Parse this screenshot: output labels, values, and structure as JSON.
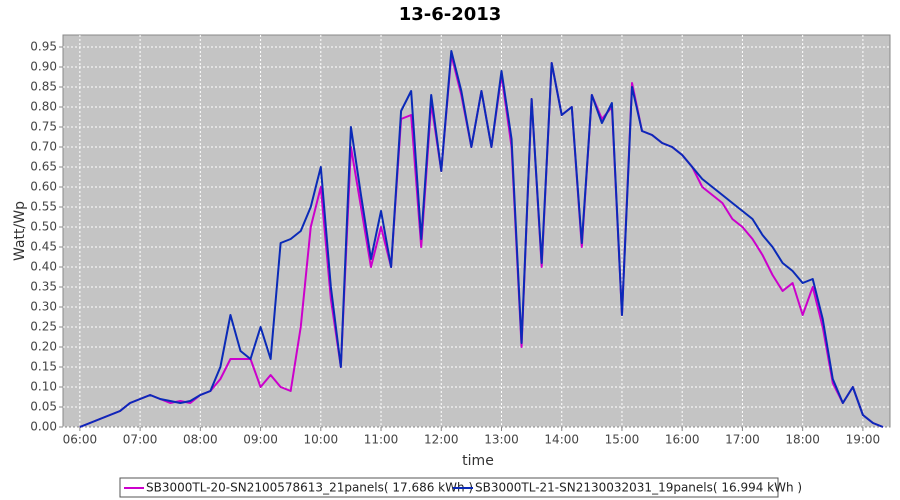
{
  "chart_data": {
    "type": "line",
    "title": "13-6-2013",
    "x_label": "time",
    "y_label": "Watt/Wp",
    "x": [
      6,
      6.167,
      6.333,
      6.5,
      6.667,
      6.833,
      7,
      7.167,
      7.333,
      7.5,
      7.667,
      7.833,
      8,
      8.167,
      8.333,
      8.5,
      8.667,
      8.833,
      9,
      9.167,
      9.333,
      9.5,
      9.667,
      9.833,
      10,
      10.167,
      10.333,
      10.5,
      10.667,
      10.833,
      11,
      11.167,
      11.333,
      11.5,
      11.667,
      11.833,
      12,
      12.167,
      12.333,
      12.5,
      12.667,
      12.833,
      13,
      13.167,
      13.333,
      13.5,
      13.667,
      13.833,
      14,
      14.167,
      14.333,
      14.5,
      14.667,
      14.833,
      15,
      15.167,
      15.333,
      15.5,
      15.667,
      15.833,
      16,
      16.167,
      16.333,
      16.5,
      16.667,
      16.833,
      17,
      17.167,
      17.333,
      17.5,
      17.667,
      17.833,
      18,
      18.167,
      18.333,
      18.5,
      18.667,
      18.833,
      19,
      19.167,
      19.333
    ],
    "series": [
      {
        "name": "SB3000TL-20-SN2100578613_21panels( 17.686 kWh )",
        "color": "#cc00cc",
        "values": [
          0,
          0.01,
          0.02,
          0.03,
          0.04,
          0.06,
          0.07,
          0.08,
          0.07,
          0.06,
          0.065,
          0.06,
          0.08,
          0.09,
          0.12,
          0.17,
          0.17,
          0.17,
          0.1,
          0.13,
          0.1,
          0.09,
          0.25,
          0.5,
          0.6,
          0.32,
          0.15,
          0.7,
          0.55,
          0.4,
          0.5,
          0.4,
          0.77,
          0.78,
          0.45,
          0.81,
          0.64,
          0.93,
          0.83,
          0.7,
          0.84,
          0.7,
          0.88,
          0.7,
          0.2,
          0.82,
          0.4,
          0.91,
          0.78,
          0.8,
          0.45,
          0.83,
          0.77,
          0.8,
          0.28,
          0.86,
          0.74,
          0.73,
          0.71,
          0.7,
          0.68,
          0.65,
          0.6,
          0.58,
          0.56,
          0.52,
          0.5,
          0.47,
          0.43,
          0.38,
          0.34,
          0.36,
          0.28,
          0.35,
          0.25,
          0.11,
          0.06,
          0.1,
          0.03,
          0.01,
          0
        ]
      },
      {
        "name": "SB3000TL-21-SN2130032031_19panels( 16.994 kWh )",
        "color": "#0a2ab8",
        "values": [
          0,
          0.01,
          0.02,
          0.03,
          0.04,
          0.06,
          0.07,
          0.08,
          0.07,
          0.065,
          0.06,
          0.065,
          0.08,
          0.09,
          0.15,
          0.28,
          0.19,
          0.17,
          0.25,
          0.17,
          0.46,
          0.47,
          0.49,
          0.55,
          0.65,
          0.35,
          0.15,
          0.75,
          0.58,
          0.42,
          0.54,
          0.4,
          0.79,
          0.84,
          0.47,
          0.83,
          0.64,
          0.94,
          0.84,
          0.7,
          0.84,
          0.7,
          0.89,
          0.72,
          0.21,
          0.82,
          0.41,
          0.91,
          0.78,
          0.8,
          0.46,
          0.83,
          0.76,
          0.81,
          0.28,
          0.85,
          0.74,
          0.73,
          0.71,
          0.7,
          0.68,
          0.65,
          0.62,
          0.6,
          0.58,
          0.56,
          0.54,
          0.52,
          0.48,
          0.45,
          0.41,
          0.39,
          0.36,
          0.37,
          0.27,
          0.12,
          0.06,
          0.1,
          0.03,
          0.01,
          0
        ]
      }
    ],
    "xlim": [
      5.72,
      19.45
    ],
    "ylim": [
      0,
      0.98
    ],
    "xticks": [
      {
        "value": 6,
        "label": "06:00"
      },
      {
        "value": 7,
        "label": "07:00"
      },
      {
        "value": 8,
        "label": "08:00"
      },
      {
        "value": 9,
        "label": "09:00"
      },
      {
        "value": 10,
        "label": "10:00"
      },
      {
        "value": 11,
        "label": "11:00"
      },
      {
        "value": 12,
        "label": "12:00"
      },
      {
        "value": 13,
        "label": "13:00"
      },
      {
        "value": 14,
        "label": "14:00"
      },
      {
        "value": 15,
        "label": "15:00"
      },
      {
        "value": 16,
        "label": "16:00"
      },
      {
        "value": 17,
        "label": "17:00"
      },
      {
        "value": 18,
        "label": "18:00"
      },
      {
        "value": 19,
        "label": "19:00"
      }
    ],
    "yticks": [
      {
        "value": 0,
        "label": "0.00"
      },
      0.05,
      {
        "value": 0.1,
        "label": "0.10"
      },
      0.15,
      {
        "value": 0.2,
        "label": "0.20"
      },
      0.25,
      {
        "value": 0.3,
        "label": "0.30"
      },
      0.35,
      {
        "value": 0.4,
        "label": "0.40"
      },
      0.45,
      {
        "value": 0.5,
        "label": "0.50"
      },
      0.55,
      {
        "value": 0.6,
        "label": "0.60"
      },
      0.65,
      {
        "value": 0.7,
        "label": "0.70"
      },
      0.75,
      {
        "value": 0.8,
        "label": "0.80"
      },
      0.85,
      {
        "value": 0.9,
        "label": "0.90"
      },
      0.95
    ],
    "grid": true
  }
}
